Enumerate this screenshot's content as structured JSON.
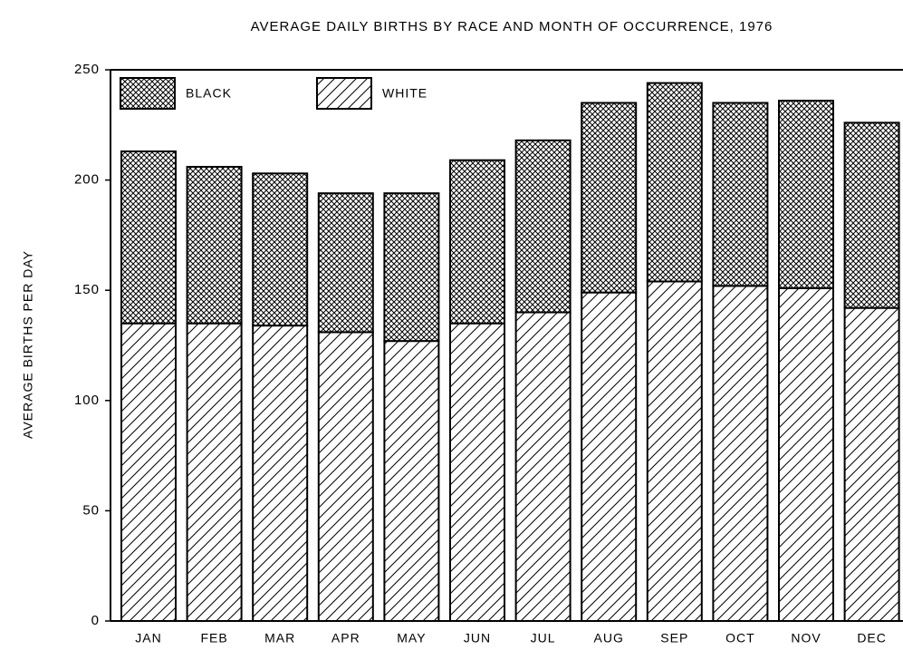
{
  "chart_data": {
    "type": "stacked_bar",
    "title": "AVERAGE DAILY BIRTHS BY RACE AND MONTH OF OCCURRENCE, 1976",
    "y_label": "AVERAGE BIRTHS PER DAY",
    "categories": [
      "JAN",
      "FEB",
      "MAR",
      "APR",
      "MAY",
      "JUN",
      "JUL",
      "AUG",
      "SEP",
      "OCT",
      "NOV",
      "DEC"
    ],
    "series": [
      {
        "name": "WHITE",
        "pattern": "hatch",
        "values": [
          135,
          135,
          134,
          131,
          127,
          135,
          140,
          149,
          154,
          152,
          151,
          142
        ]
      },
      {
        "name": "BLACK",
        "pattern": "crosshatch",
        "values": [
          78,
          71,
          69,
          63,
          67,
          74,
          78,
          86,
          90,
          83,
          85,
          84
        ]
      }
    ],
    "ylim": [
      0,
      250
    ],
    "yticks": [
      0,
      50,
      100,
      150,
      200,
      250
    ]
  }
}
